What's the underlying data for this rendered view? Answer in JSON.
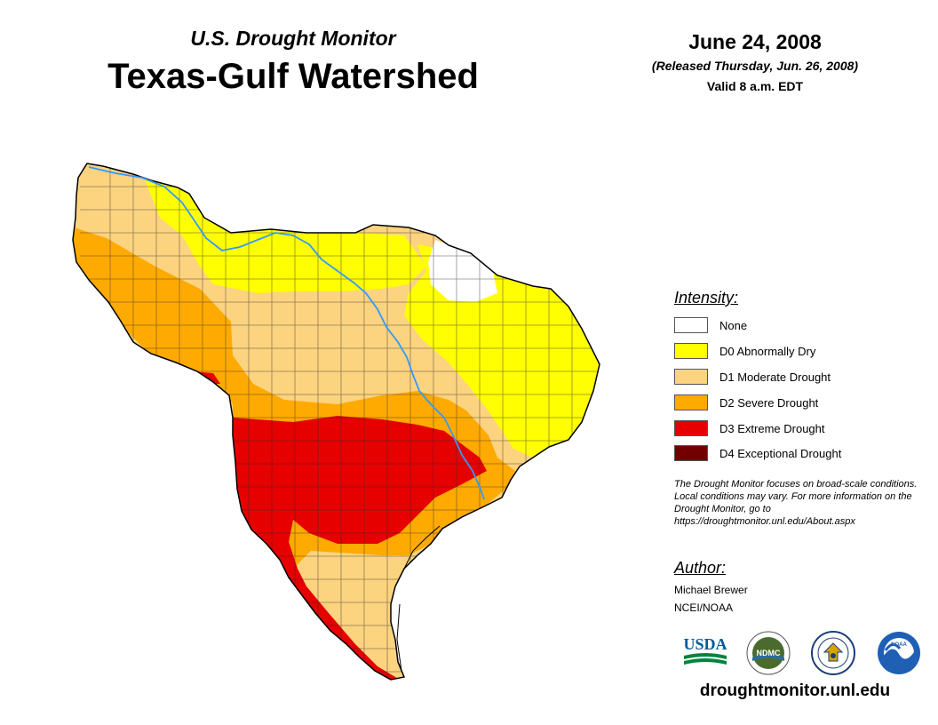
{
  "header": {
    "subtitle": "U.S. Drought Monitor",
    "title": "Texas-Gulf Watershed",
    "date": "June 24, 2008",
    "released": "(Released Thursday, Jun. 26, 2008)",
    "valid": "Valid 8 a.m. EDT"
  },
  "legend": {
    "heading": "Intensity:",
    "items": [
      {
        "label": "None",
        "color": "#ffffff"
      },
      {
        "label": "D0 Abnormally Dry",
        "color": "#ffff00"
      },
      {
        "label": "D1 Moderate Drought",
        "color": "#fcd37f"
      },
      {
        "label": "D2 Severe Drought",
        "color": "#ffaa00"
      },
      {
        "label": "D3 Extreme Drought",
        "color": "#e60000"
      },
      {
        "label": "D4 Exceptional Drought",
        "color": "#730000"
      }
    ]
  },
  "disclaimer": "The Drought Monitor focuses on broad-scale conditions. Local conditions may vary. For more information on the Drought Monitor, go to https://droughtmonitor.unl.edu/About.aspx",
  "author": {
    "heading": "Author:",
    "name": "Michael Brewer",
    "org": "NCEI/NOAA"
  },
  "logos": {
    "usda": "USDA",
    "ndmc": "NDMC",
    "noaa": "NOAA",
    "doc": "U.S. Department of Commerce"
  },
  "footer": {
    "url": "droughtmonitor.unl.edu"
  },
  "colors": {
    "river": "#3399ff",
    "county_lines": "#333333"
  }
}
